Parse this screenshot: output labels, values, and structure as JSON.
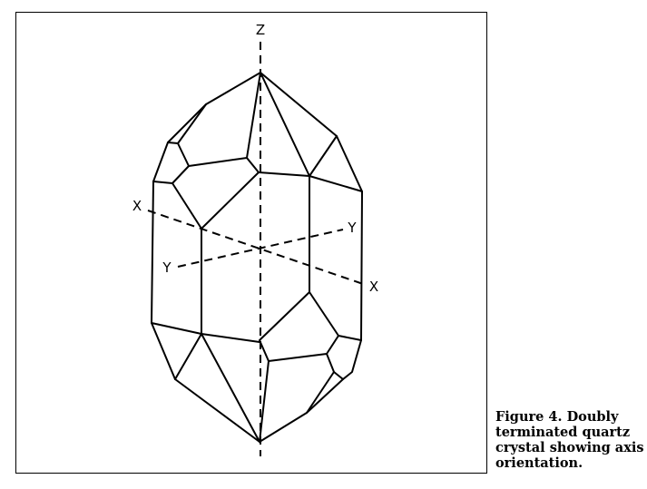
{
  "figure": {
    "axis_labels": {
      "z_top": "Z",
      "x_left": "X",
      "x_right": "X",
      "y_left": "Y",
      "y_right": "Y"
    },
    "caption": "Figure 4. Doubly terminated quartz crystal showing axis orientation."
  }
}
